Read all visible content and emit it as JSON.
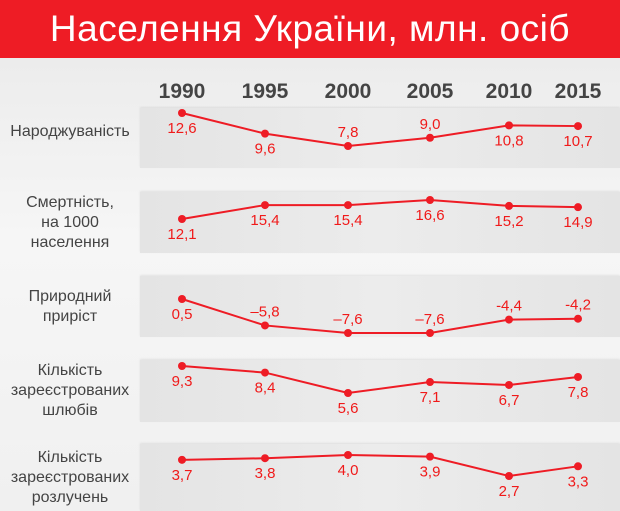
{
  "title": "Населення України, млн. осіб",
  "chart_data": {
    "type": "line",
    "title": "Населення України, млн. осіб",
    "categories": [
      "1990",
      "1995",
      "2000",
      "2005",
      "2010",
      "2015"
    ],
    "color": "#ee1c25",
    "grid": false,
    "panels": [
      {
        "name": "Народжуваність",
        "name_lines": [
          "Народжуваність"
        ],
        "values": [
          12.6,
          9.6,
          7.8,
          9.0,
          10.8,
          10.7
        ],
        "labels": [
          "12,6",
          "9,6",
          "7,8",
          "9,0",
          "10,8",
          "10,7"
        ]
      },
      {
        "name": "Смертність, на 1000 населення",
        "name_lines": [
          "Смертність,",
          "на 1000",
          "населення"
        ],
        "values": [
          12.1,
          15.4,
          15.4,
          16.6,
          15.2,
          14.9
        ],
        "labels": [
          "12,1",
          "15,4",
          "15,4",
          "16,6",
          "15,2",
          "14,9"
        ]
      },
      {
        "name": "Природний приріст",
        "name_lines": [
          "Природний",
          "приріст"
        ],
        "values": [
          0.5,
          -5.8,
          -7.6,
          -7.6,
          -4.4,
          -4.2
        ],
        "labels": [
          "0,5",
          "–5,8",
          "–7,6",
          "–7,6",
          "-4,4",
          "-4,2"
        ]
      },
      {
        "name": "Кількість зареєстрованих шлюбів",
        "name_lines": [
          "Кількість",
          "зареєстрованих",
          "шлюбів"
        ],
        "values": [
          9.3,
          8.4,
          5.6,
          7.1,
          6.7,
          7.8
        ],
        "labels": [
          "9,3",
          "8,4",
          "5,6",
          "7,1",
          "6,7",
          "7,8"
        ]
      },
      {
        "name": "Кількість зареєстрованих розлучень",
        "name_lines": [
          "Кількість",
          "зареєстрованих",
          "розлучень"
        ],
        "values": [
          3.7,
          3.8,
          4.0,
          3.9,
          2.7,
          3.3
        ],
        "labels": [
          "3,7",
          "3,8",
          "4,0",
          "3,9",
          "2,7",
          "3,3"
        ]
      }
    ]
  }
}
